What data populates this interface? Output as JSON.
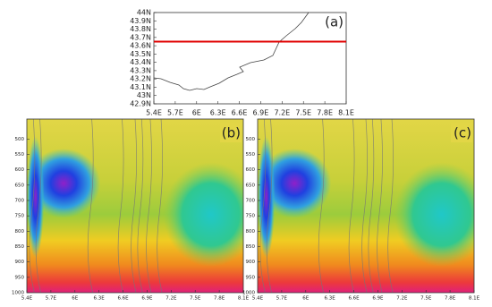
{
  "chart_data": [
    {
      "type": "map",
      "label": "(a)",
      "xlim": [
        5.4,
        8.1
      ],
      "xticks": [
        {
          "value": 5.4,
          "label": "5.4E"
        },
        {
          "value": 5.7,
          "label": "5.7E"
        },
        {
          "value": 6,
          "label": "6E"
        },
        {
          "value": 6.3,
          "label": "6.3E"
        },
        {
          "value": 6.6,
          "label": "6.6E"
        },
        {
          "value": 6.9,
          "label": "6.9E"
        },
        {
          "value": 7.2,
          "label": "7.2E"
        },
        {
          "value": 7.5,
          "label": "7.5E"
        },
        {
          "value": 7.8,
          "label": "7.8E"
        },
        {
          "value": 8.1,
          "label": "8.1E"
        }
      ],
      "ylim": [
        42.9,
        44
      ],
      "yticks": [
        {
          "value": 42.9,
          "label": "42.9N"
        },
        {
          "value": 43,
          "label": "43N"
        },
        {
          "value": 43.1,
          "label": "43.1N"
        },
        {
          "value": 43.2,
          "label": "43.2N"
        },
        {
          "value": 43.3,
          "label": "43.3N"
        },
        {
          "value": 43.4,
          "label": "43.4N"
        },
        {
          "value": 43.5,
          "label": "43.5N"
        },
        {
          "value": 43.6,
          "label": "43.6N"
        },
        {
          "value": 43.7,
          "label": "43.7N"
        },
        {
          "value": 43.8,
          "label": "43.8N"
        },
        {
          "value": 43.9,
          "label": "43.9N"
        },
        {
          "value": 44,
          "label": "44N"
        }
      ],
      "transect_lat": 43.65,
      "transect_color": "#e00000"
    },
    {
      "type": "contour",
      "label": "(b)",
      "xlim": [
        5.4,
        8.1
      ],
      "xticks": [
        {
          "value": 5.4,
          "label": "5.4E"
        },
        {
          "value": 5.7,
          "label": "5.7E"
        },
        {
          "value": 6,
          "label": "6E"
        },
        {
          "value": 6.3,
          "label": "6.3E"
        },
        {
          "value": 6.6,
          "label": "6.6E"
        },
        {
          "value": 6.9,
          "label": "6.9E"
        },
        {
          "value": 7.2,
          "label": "7.2E"
        },
        {
          "value": 7.5,
          "label": "7.5E"
        },
        {
          "value": 7.8,
          "label": "7.8E"
        },
        {
          "value": 8.1,
          "label": "8.1E"
        }
      ],
      "ylim": [
        1000,
        435
      ],
      "yticks": [
        500,
        550,
        600,
        650,
        700,
        750,
        800,
        850,
        900,
        950,
        1000
      ]
    },
    {
      "type": "contour",
      "label": "(c)",
      "xlim": [
        5.4,
        8.1
      ],
      "xticks": [
        {
          "value": 5.4,
          "label": "5.4E"
        },
        {
          "value": 5.7,
          "label": "5.7E"
        },
        {
          "value": 6,
          "label": "6E"
        },
        {
          "value": 6.3,
          "label": "6.3E"
        },
        {
          "value": 6.6,
          "label": "6.6E"
        },
        {
          "value": 6.9,
          "label": "6.9E"
        },
        {
          "value": 7.2,
          "label": "7.2E"
        },
        {
          "value": 7.5,
          "label": "7.5E"
        },
        {
          "value": 7.8,
          "label": "7.8E"
        },
        {
          "value": 8.1,
          "label": "8.1E"
        }
      ],
      "ylim": [
        1000,
        435
      ],
      "yticks": [
        500,
        550,
        600,
        650,
        700,
        750,
        800,
        850,
        900,
        950,
        1000
      ]
    }
  ]
}
